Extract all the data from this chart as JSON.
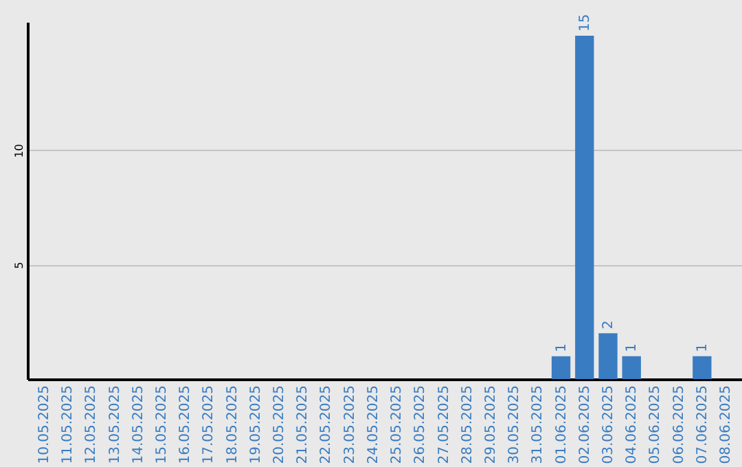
{
  "chart_data": {
    "type": "bar",
    "categories": [
      "10.05.2025",
      "11.05.2025",
      "12.05.2025",
      "13.05.2025",
      "14.05.2025",
      "15.05.2025",
      "16.05.2025",
      "17.05.2025",
      "18.05.2025",
      "19.05.2025",
      "20.05.2025",
      "21.05.2025",
      "22.05.2025",
      "23.05.2025",
      "24.05.2025",
      "25.05.2025",
      "26.05.2025",
      "27.05.2025",
      "28.05.2025",
      "29.05.2025",
      "30.05.2025",
      "31.05.2025",
      "01.06.2025",
      "02.06.2025",
      "03.06.2025",
      "04.06.2025",
      "05.06.2025",
      "06.06.2025",
      "07.06.2025",
      "08.06.2025"
    ],
    "values": [
      0,
      0,
      0,
      0,
      0,
      0,
      0,
      0,
      0,
      0,
      0,
      0,
      0,
      0,
      0,
      0,
      0,
      0,
      0,
      0,
      0,
      0,
      1,
      15,
      2,
      1,
      0,
      0,
      1,
      0
    ],
    "value_labels": [
      null,
      null,
      null,
      null,
      null,
      null,
      null,
      null,
      null,
      null,
      null,
      null,
      null,
      null,
      null,
      null,
      null,
      null,
      null,
      null,
      null,
      null,
      "1",
      "15",
      "2",
      "1",
      null,
      null,
      "1",
      null
    ],
    "color": "#3a7cc1",
    "ylim": [
      0,
      15.6
    ],
    "yticks": [
      5,
      10
    ],
    "grid": "y"
  }
}
